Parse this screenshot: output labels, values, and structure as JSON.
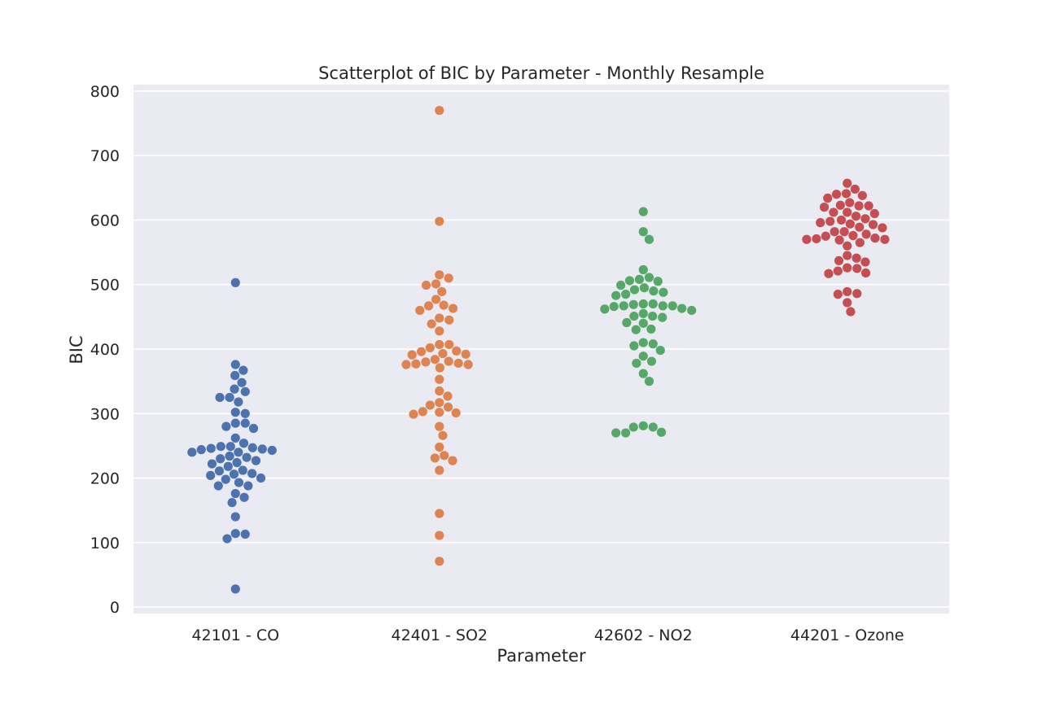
{
  "chart_data": {
    "type": "scatter",
    "title": "Scatterplot of BIC by Parameter - Monthly Resample",
    "xlabel": "Parameter",
    "ylabel": "BIC",
    "ylim": [
      -10,
      810
    ],
    "yticks": [
      "0",
      "100",
      "200",
      "300",
      "400",
      "500",
      "600",
      "700",
      "800"
    ],
    "grid": true,
    "categories": [
      "42101 - CO",
      "42401 - SO2",
      "42602 - NO2",
      "44201 - Ozone"
    ],
    "colors": [
      "#4c72b0",
      "#dd8452",
      "#55a868",
      "#c44e52"
    ],
    "background": "#eaeaf2",
    "series": [
      {
        "values": [
          503,
          376,
          367,
          359,
          348,
          338,
          334,
          325,
          325,
          318,
          302,
          300,
          285,
          285,
          280,
          277,
          262,
          254,
          249,
          249,
          247,
          246,
          245,
          244,
          243,
          240,
          240,
          234,
          232,
          230,
          227,
          224,
          222,
          218,
          212,
          211,
          207,
          206,
          204,
          200,
          198,
          193,
          188,
          188,
          176,
          170,
          162,
          140,
          114,
          113,
          106,
          28
        ]
      },
      {
        "values": [
          770,
          598,
          515,
          510,
          501,
          499,
          489,
          477,
          468,
          467,
          463,
          460,
          448,
          445,
          439,
          428,
          407,
          407,
          402,
          397,
          396,
          393,
          392,
          391,
          384,
          381,
          380,
          378,
          377,
          376,
          376,
          371,
          353,
          335,
          327,
          317,
          313,
          310,
          303,
          302,
          301,
          299,
          280,
          266,
          248,
          235,
          231,
          227,
          212,
          145,
          111,
          71
        ]
      },
      {
        "values": [
          613,
          582,
          570,
          523,
          511,
          508,
          506,
          505,
          499,
          495,
          492,
          490,
          488,
          485,
          483,
          470,
          470,
          469,
          467,
          467,
          467,
          466,
          463,
          462,
          460,
          455,
          451,
          451,
          449,
          441,
          440,
          431,
          430,
          410,
          408,
          405,
          398,
          389,
          381,
          378,
          362,
          350,
          281,
          279,
          279,
          271,
          270,
          270
        ]
      },
      {
        "values": [
          657,
          648,
          641,
          640,
          638,
          634,
          627,
          623,
          622,
          622,
          620,
          612,
          612,
          610,
          606,
          602,
          600,
          598,
          596,
          594,
          593,
          589,
          588,
          582,
          582,
          578,
          576,
          575,
          572,
          571,
          570,
          570,
          569,
          565,
          560,
          545,
          541,
          537,
          535,
          526,
          525,
          521,
          518,
          517,
          489,
          486,
          485,
          472,
          458
        ]
      }
    ]
  }
}
